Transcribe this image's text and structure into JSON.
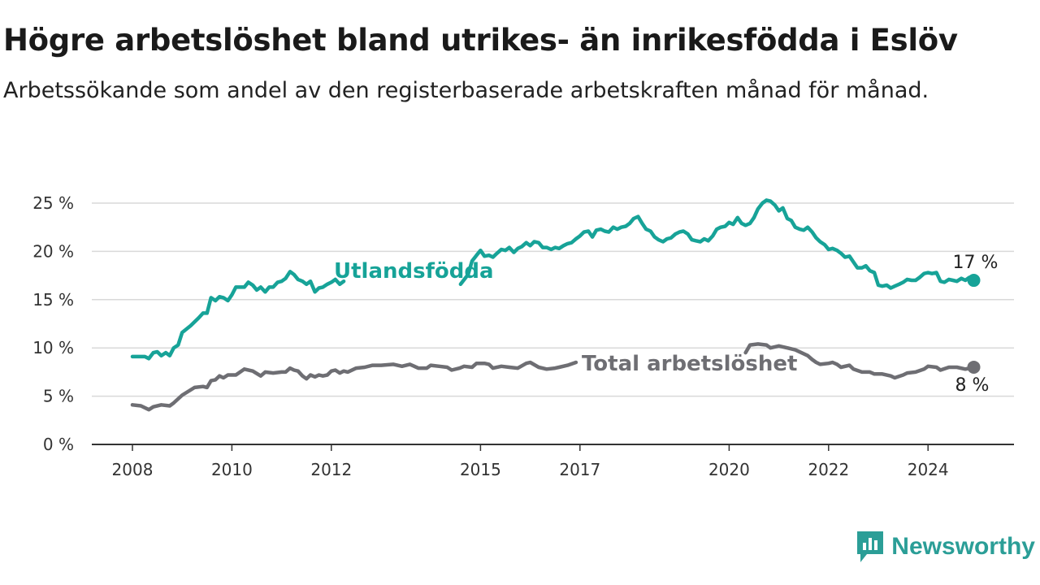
{
  "title": "Högre arbetslöshet bland utrikes- än inrikesfödda i Eslöv",
  "subtitle": "Arbetssökande som andel av den registerbaserade arbetskraften månad för månad.",
  "brand": "Newsworthy",
  "colors": {
    "utlandsfodda": "#17a398",
    "total": "#6e6e73",
    "grid": "#d9d9d9",
    "axis": "#333333",
    "brand": "#2b9e97"
  },
  "chart_data": {
    "type": "line",
    "x_unit": "year (decimal)",
    "xlim": [
      2008,
      2025.1
    ],
    "ylim": [
      0,
      25
    ],
    "y_ticks": [
      0,
      5,
      10,
      15,
      20,
      25
    ],
    "y_tick_labels": [
      "0 %",
      "5 %",
      "10 %",
      "15 %",
      "20 %",
      "25 %"
    ],
    "x_ticks": [
      2008,
      2010,
      2012,
      2015,
      2017,
      2020,
      2022,
      2024
    ],
    "x_tick_labels": [
      "2008",
      "2010",
      "2012",
      "2015",
      "2017",
      "2020",
      "2022",
      "2024"
    ],
    "grid": "horizontal",
    "series": [
      {
        "name": "Utlandsfödda",
        "color": "#17a398",
        "end_label": "17 %",
        "points": [
          [
            2008.0,
            9.1
          ],
          [
            2008.25,
            9.1
          ],
          [
            2008.33,
            8.9
          ],
          [
            2008.42,
            9.5
          ],
          [
            2008.5,
            9.6
          ],
          [
            2008.58,
            9.2
          ],
          [
            2008.67,
            9.5
          ],
          [
            2008.75,
            9.2
          ],
          [
            2008.83,
            10.0
          ],
          [
            2008.92,
            10.3
          ],
          [
            2009.0,
            11.6
          ],
          [
            2009.17,
            12.3
          ],
          [
            2009.33,
            13.1
          ],
          [
            2009.42,
            13.6
          ],
          [
            2009.5,
            13.6
          ],
          [
            2009.58,
            15.2
          ],
          [
            2009.67,
            14.9
          ],
          [
            2009.75,
            15.3
          ],
          [
            2009.83,
            15.2
          ],
          [
            2009.92,
            14.9
          ],
          [
            2010.0,
            15.5
          ],
          [
            2010.08,
            16.3
          ],
          [
            2010.17,
            16.3
          ],
          [
            2010.25,
            16.3
          ],
          [
            2010.33,
            16.8
          ],
          [
            2010.42,
            16.5
          ],
          [
            2010.5,
            16.0
          ],
          [
            2010.58,
            16.3
          ],
          [
            2010.67,
            15.8
          ],
          [
            2010.75,
            16.3
          ],
          [
            2010.83,
            16.3
          ],
          [
            2010.92,
            16.8
          ],
          [
            2011.0,
            16.9
          ],
          [
            2011.08,
            17.2
          ],
          [
            2011.17,
            17.9
          ],
          [
            2011.25,
            17.6
          ],
          [
            2011.33,
            17.1
          ],
          [
            2011.42,
            16.9
          ],
          [
            2011.5,
            16.6
          ],
          [
            2011.58,
            16.9
          ],
          [
            2011.67,
            15.8
          ],
          [
            2011.75,
            16.2
          ],
          [
            2011.83,
            16.3
          ],
          [
            2011.92,
            16.6
          ],
          [
            2012.0,
            16.8
          ],
          [
            2012.08,
            17.1
          ],
          [
            2012.17,
            16.6
          ],
          [
            2012.25,
            16.9
          ],
          [
            2014.6,
            16.6
          ],
          [
            2014.75,
            17.6
          ],
          [
            2014.83,
            19.0
          ],
          [
            2014.92,
            19.6
          ],
          [
            2015.0,
            20.1
          ],
          [
            2015.08,
            19.5
          ],
          [
            2015.17,
            19.6
          ],
          [
            2015.25,
            19.4
          ],
          [
            2015.33,
            19.8
          ],
          [
            2015.42,
            20.2
          ],
          [
            2015.5,
            20.1
          ],
          [
            2015.58,
            20.4
          ],
          [
            2015.67,
            19.9
          ],
          [
            2015.75,
            20.3
          ],
          [
            2015.83,
            20.5
          ],
          [
            2015.92,
            20.9
          ],
          [
            2016.0,
            20.6
          ],
          [
            2016.08,
            21.0
          ],
          [
            2016.17,
            20.9
          ],
          [
            2016.25,
            20.4
          ],
          [
            2016.33,
            20.4
          ],
          [
            2016.42,
            20.2
          ],
          [
            2016.5,
            20.4
          ],
          [
            2016.58,
            20.3
          ],
          [
            2016.67,
            20.6
          ],
          [
            2016.75,
            20.8
          ],
          [
            2016.83,
            20.9
          ],
          [
            2016.92,
            21.3
          ],
          [
            2017.0,
            21.6
          ],
          [
            2017.08,
            22.0
          ],
          [
            2017.17,
            22.1
          ],
          [
            2017.25,
            21.5
          ],
          [
            2017.33,
            22.2
          ],
          [
            2017.42,
            22.3
          ],
          [
            2017.5,
            22.1
          ],
          [
            2017.58,
            22.0
          ],
          [
            2017.67,
            22.5
          ],
          [
            2017.75,
            22.3
          ],
          [
            2017.83,
            22.5
          ],
          [
            2017.92,
            22.6
          ],
          [
            2018.0,
            22.9
          ],
          [
            2018.08,
            23.4
          ],
          [
            2018.17,
            23.6
          ],
          [
            2018.25,
            22.9
          ],
          [
            2018.33,
            22.3
          ],
          [
            2018.42,
            22.1
          ],
          [
            2018.5,
            21.5
          ],
          [
            2018.58,
            21.2
          ],
          [
            2018.67,
            21.0
          ],
          [
            2018.75,
            21.3
          ],
          [
            2018.83,
            21.4
          ],
          [
            2018.92,
            21.8
          ],
          [
            2019.0,
            22.0
          ],
          [
            2019.08,
            22.1
          ],
          [
            2019.17,
            21.8
          ],
          [
            2019.25,
            21.2
          ],
          [
            2019.33,
            21.1
          ],
          [
            2019.42,
            21.0
          ],
          [
            2019.5,
            21.3
          ],
          [
            2019.58,
            21.1
          ],
          [
            2019.67,
            21.6
          ],
          [
            2019.75,
            22.3
          ],
          [
            2019.83,
            22.5
          ],
          [
            2019.92,
            22.6
          ],
          [
            2020.0,
            23.0
          ],
          [
            2020.08,
            22.8
          ],
          [
            2020.17,
            23.5
          ],
          [
            2020.25,
            22.9
          ],
          [
            2020.33,
            22.7
          ],
          [
            2020.42,
            22.9
          ],
          [
            2020.5,
            23.5
          ],
          [
            2020.58,
            24.4
          ],
          [
            2020.67,
            25.0
          ],
          [
            2020.75,
            25.3
          ],
          [
            2020.83,
            25.2
          ],
          [
            2020.92,
            24.8
          ],
          [
            2021.0,
            24.2
          ],
          [
            2021.08,
            24.5
          ],
          [
            2021.17,
            23.4
          ],
          [
            2021.25,
            23.2
          ],
          [
            2021.33,
            22.5
          ],
          [
            2021.42,
            22.3
          ],
          [
            2021.5,
            22.2
          ],
          [
            2021.58,
            22.5
          ],
          [
            2021.67,
            22.0
          ],
          [
            2021.75,
            21.4
          ],
          [
            2021.83,
            21.0
          ],
          [
            2021.92,
            20.7
          ],
          [
            2022.0,
            20.2
          ],
          [
            2022.08,
            20.3
          ],
          [
            2022.17,
            20.1
          ],
          [
            2022.25,
            19.8
          ],
          [
            2022.33,
            19.4
          ],
          [
            2022.42,
            19.5
          ],
          [
            2022.5,
            18.9
          ],
          [
            2022.58,
            18.3
          ],
          [
            2022.67,
            18.3
          ],
          [
            2022.75,
            18.5
          ],
          [
            2022.83,
            18.0
          ],
          [
            2022.92,
            17.8
          ],
          [
            2023.0,
            16.5
          ],
          [
            2023.08,
            16.4
          ],
          [
            2023.17,
            16.5
          ],
          [
            2023.25,
            16.2
          ],
          [
            2023.33,
            16.4
          ],
          [
            2023.42,
            16.6
          ],
          [
            2023.5,
            16.8
          ],
          [
            2023.58,
            17.1
          ],
          [
            2023.67,
            17.0
          ],
          [
            2023.75,
            17.0
          ],
          [
            2023.83,
            17.3
          ],
          [
            2023.92,
            17.7
          ],
          [
            2024.0,
            17.8
          ],
          [
            2024.08,
            17.7
          ],
          [
            2024.17,
            17.8
          ],
          [
            2024.25,
            16.9
          ],
          [
            2024.33,
            16.8
          ],
          [
            2024.42,
            17.1
          ],
          [
            2024.5,
            17.0
          ],
          [
            2024.58,
            16.9
          ],
          [
            2024.67,
            17.2
          ],
          [
            2024.75,
            17.0
          ],
          [
            2024.83,
            17.3
          ],
          [
            2024.92,
            17.0
          ]
        ]
      },
      {
        "name": "Total arbetslöshet",
        "color": "#6e6e73",
        "end_label": "8 %",
        "points": [
          [
            2008.0,
            4.1
          ],
          [
            2008.17,
            4.0
          ],
          [
            2008.33,
            3.6
          ],
          [
            2008.42,
            3.9
          ],
          [
            2008.58,
            4.1
          ],
          [
            2008.75,
            4.0
          ],
          [
            2008.83,
            4.3
          ],
          [
            2009.0,
            5.1
          ],
          [
            2009.25,
            5.9
          ],
          [
            2009.42,
            6.0
          ],
          [
            2009.5,
            5.9
          ],
          [
            2009.58,
            6.6
          ],
          [
            2009.67,
            6.7
          ],
          [
            2009.75,
            7.1
          ],
          [
            2009.83,
            6.9
          ],
          [
            2009.92,
            7.2
          ],
          [
            2010.08,
            7.2
          ],
          [
            2010.25,
            7.8
          ],
          [
            2010.42,
            7.6
          ],
          [
            2010.58,
            7.1
          ],
          [
            2010.67,
            7.5
          ],
          [
            2010.83,
            7.4
          ],
          [
            2011.0,
            7.5
          ],
          [
            2011.08,
            7.5
          ],
          [
            2011.17,
            7.9
          ],
          [
            2011.25,
            7.7
          ],
          [
            2011.33,
            7.6
          ],
          [
            2011.42,
            7.1
          ],
          [
            2011.5,
            6.8
          ],
          [
            2011.58,
            7.2
          ],
          [
            2011.67,
            7.0
          ],
          [
            2011.75,
            7.2
          ],
          [
            2011.83,
            7.1
          ],
          [
            2011.92,
            7.2
          ],
          [
            2012.0,
            7.6
          ],
          [
            2012.08,
            7.7
          ],
          [
            2012.17,
            7.4
          ],
          [
            2012.25,
            7.6
          ],
          [
            2012.33,
            7.5
          ],
          [
            2012.5,
            7.9
          ],
          [
            2012.67,
            8.0
          ],
          [
            2012.83,
            8.2
          ],
          [
            2013.0,
            8.2
          ],
          [
            2013.25,
            8.3
          ],
          [
            2013.42,
            8.1
          ],
          [
            2013.58,
            8.3
          ],
          [
            2013.75,
            7.9
          ],
          [
            2013.92,
            7.9
          ],
          [
            2014.0,
            8.2
          ],
          [
            2014.17,
            8.1
          ],
          [
            2014.33,
            8.0
          ],
          [
            2014.42,
            7.7
          ],
          [
            2014.58,
            7.9
          ],
          [
            2014.67,
            8.1
          ],
          [
            2014.83,
            8.0
          ],
          [
            2014.92,
            8.4
          ],
          [
            2015.08,
            8.4
          ],
          [
            2015.17,
            8.3
          ],
          [
            2015.25,
            7.9
          ],
          [
            2015.42,
            8.1
          ],
          [
            2015.58,
            8.0
          ],
          [
            2015.75,
            7.9
          ],
          [
            2015.92,
            8.4
          ],
          [
            2016.0,
            8.5
          ],
          [
            2016.17,
            8.0
          ],
          [
            2016.33,
            7.8
          ],
          [
            2016.5,
            7.9
          ],
          [
            2016.58,
            8.0
          ],
          [
            2016.75,
            8.2
          ],
          [
            2016.92,
            8.5
          ],
          [
            2020.33,
            9.5
          ],
          [
            2020.42,
            10.3
          ],
          [
            2020.58,
            10.4
          ],
          [
            2020.75,
            10.3
          ],
          [
            2020.83,
            10.0
          ],
          [
            2021.0,
            10.2
          ],
          [
            2021.17,
            10.0
          ],
          [
            2021.33,
            9.8
          ],
          [
            2021.58,
            9.2
          ],
          [
            2021.67,
            8.8
          ],
          [
            2021.75,
            8.5
          ],
          [
            2021.83,
            8.3
          ],
          [
            2022.0,
            8.4
          ],
          [
            2022.08,
            8.5
          ],
          [
            2022.17,
            8.3
          ],
          [
            2022.25,
            8.0
          ],
          [
            2022.42,
            8.2
          ],
          [
            2022.5,
            7.8
          ],
          [
            2022.67,
            7.5
          ],
          [
            2022.83,
            7.5
          ],
          [
            2022.92,
            7.3
          ],
          [
            2023.08,
            7.3
          ],
          [
            2023.25,
            7.1
          ],
          [
            2023.33,
            6.9
          ],
          [
            2023.5,
            7.2
          ],
          [
            2023.58,
            7.4
          ],
          [
            2023.75,
            7.5
          ],
          [
            2023.92,
            7.8
          ],
          [
            2024.0,
            8.1
          ],
          [
            2024.17,
            8.0
          ],
          [
            2024.25,
            7.7
          ],
          [
            2024.42,
            8.0
          ],
          [
            2024.58,
            8.0
          ],
          [
            2024.75,
            7.8
          ],
          [
            2024.92,
            8.0
          ]
        ]
      }
    ]
  }
}
